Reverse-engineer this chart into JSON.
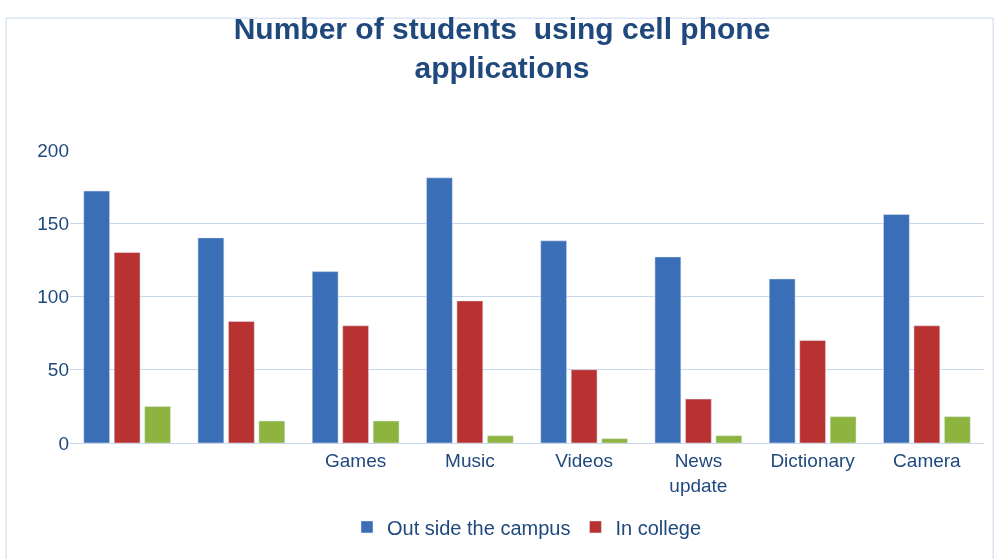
{
  "chart_data": {
    "type": "bar",
    "title": "Number of students  using cell phone\napplications",
    "categories": [
      null,
      null,
      "Games",
      "Music",
      "Videos",
      "News\nupdate",
      "Dictionary",
      "Camera"
    ],
    "series": [
      {
        "name": "Out side the campus",
        "color": "#3a6fb7",
        "values": [
          172,
          140,
          117,
          181,
          138,
          127,
          112,
          156
        ]
      },
      {
        "name": "In college",
        "color": "#b83232",
        "values": [
          130,
          83,
          80,
          97,
          50,
          30,
          70,
          80
        ]
      },
      {
        "color": "#8db43e",
        "values": [
          25,
          15,
          15,
          5,
          3,
          5,
          18,
          18
        ]
      }
    ],
    "ylim": [
      0,
      200
    ],
    "yticks": [
      0,
      50,
      100,
      150,
      200
    ],
    "grid": "y",
    "legend": "bottom"
  }
}
